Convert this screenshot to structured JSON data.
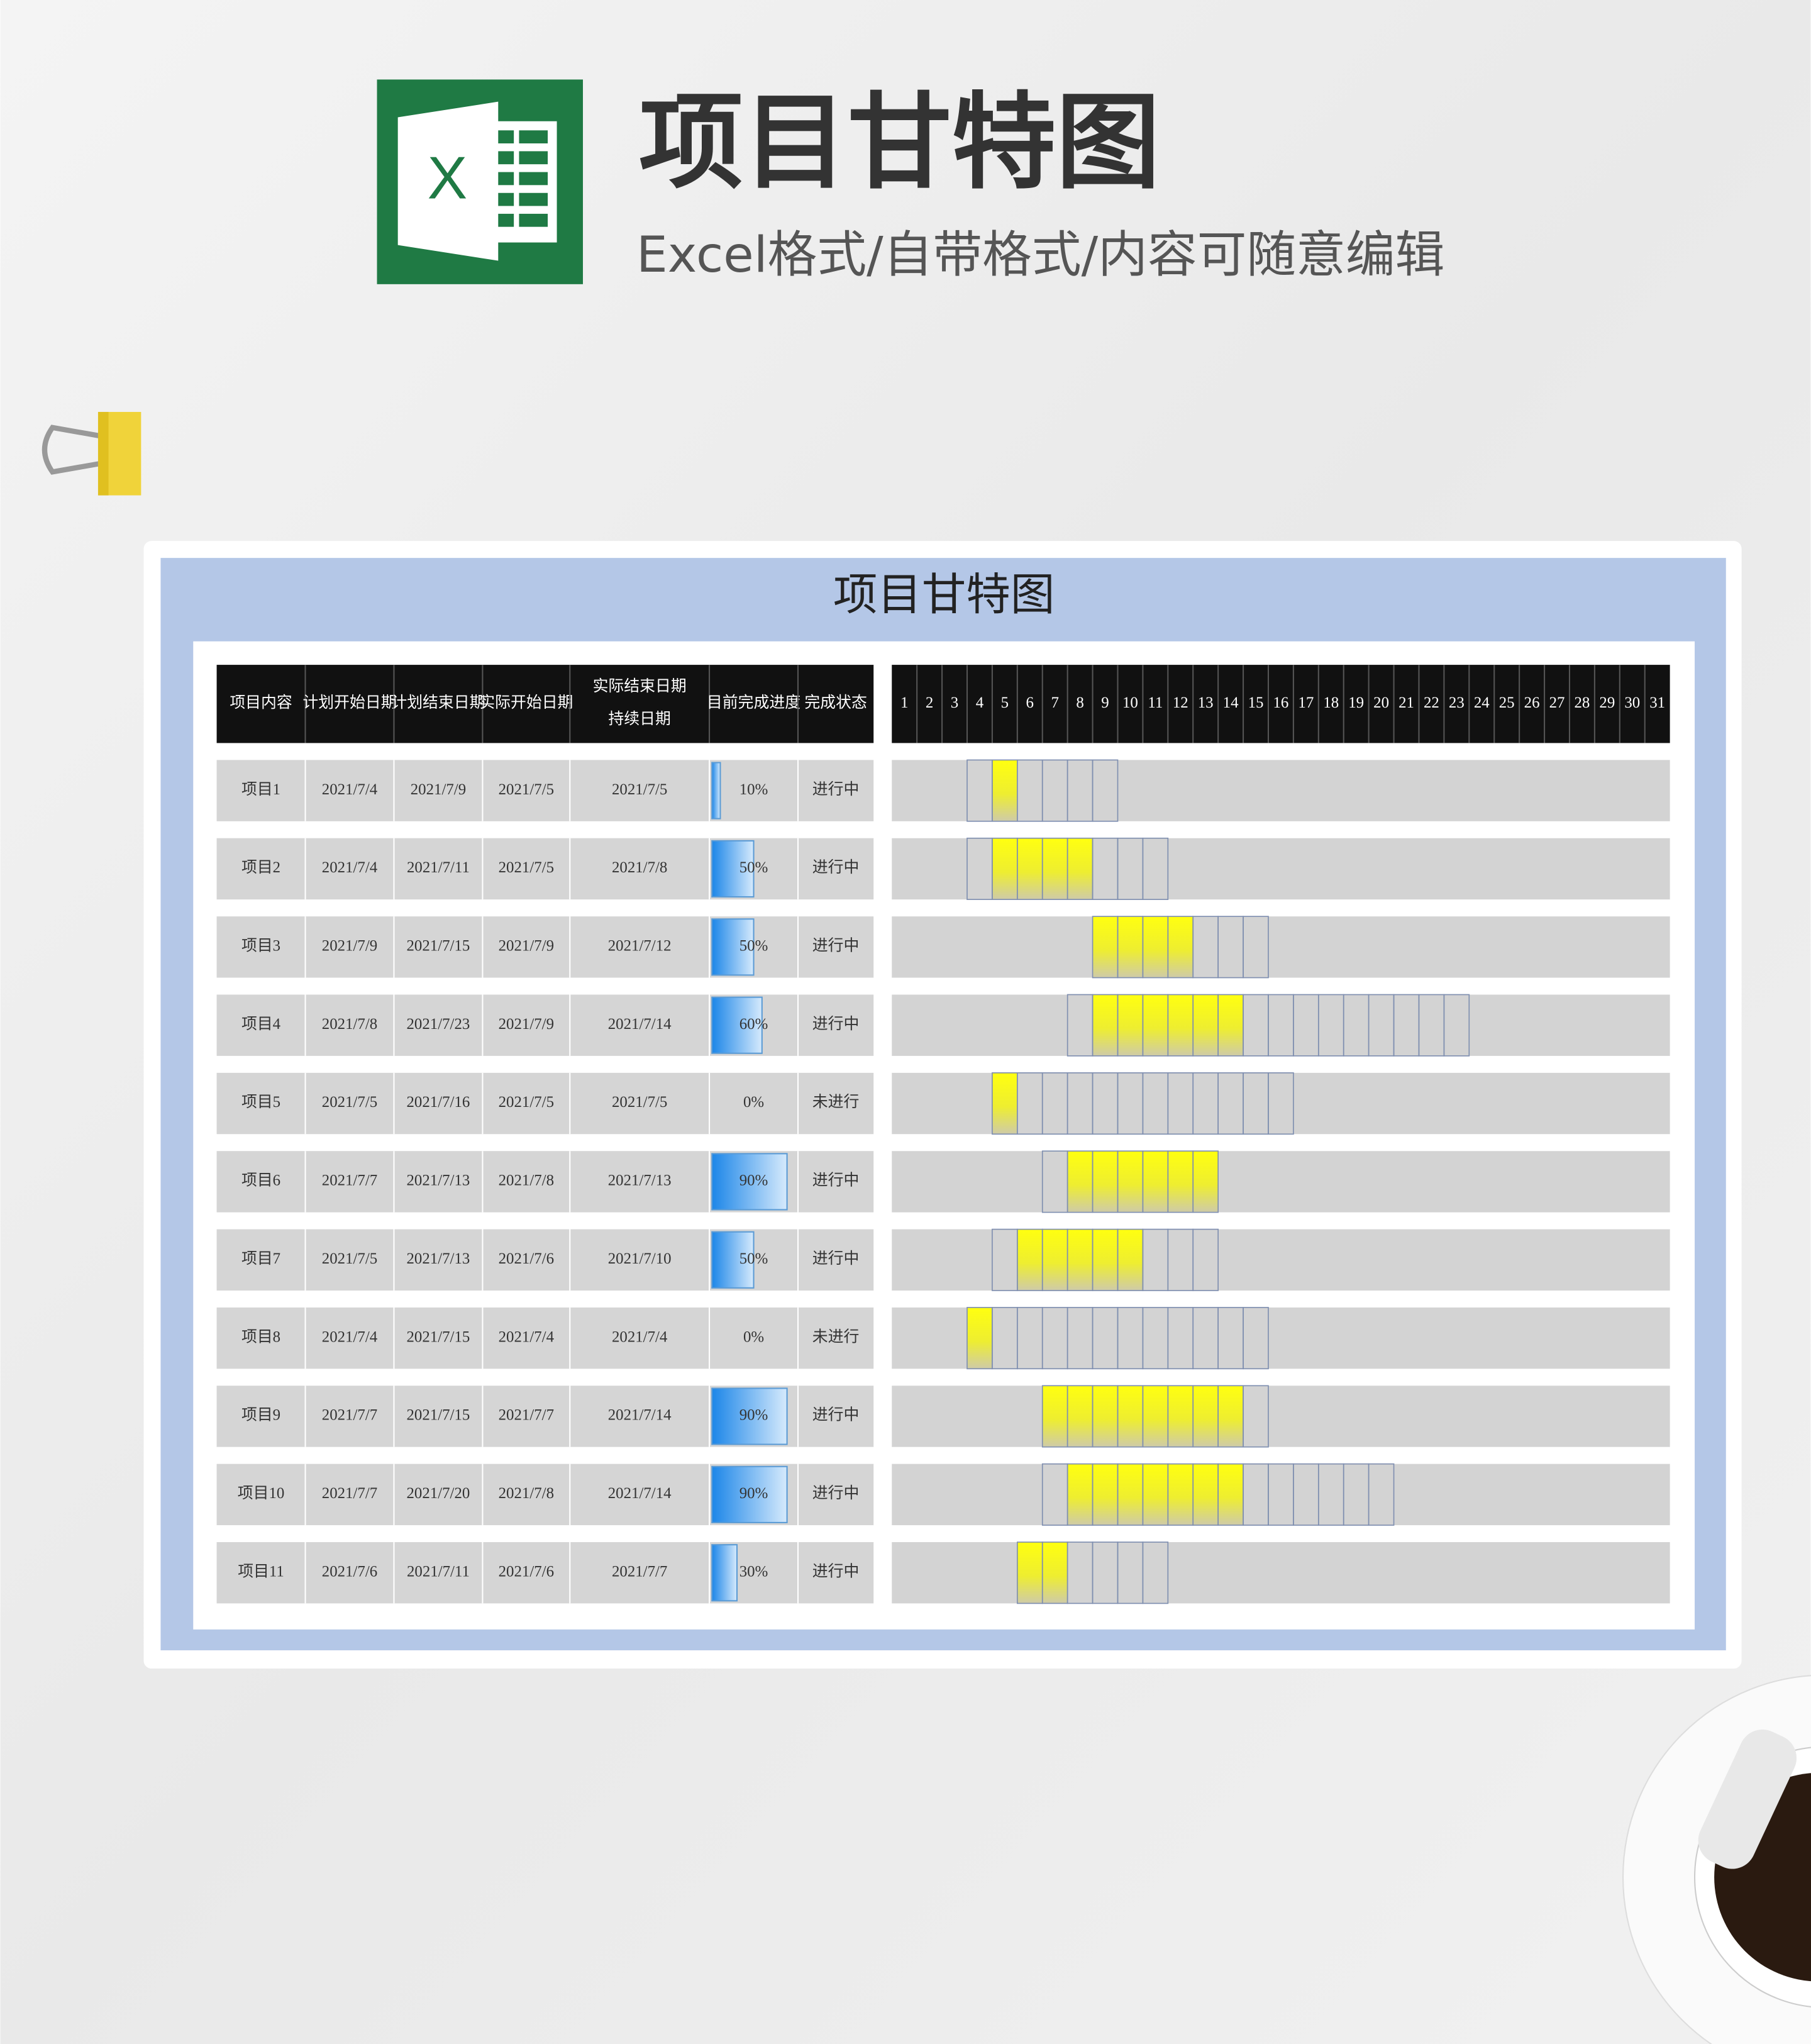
{
  "header": {
    "title": "项目甘特图",
    "subtitle": "Excel格式/自带格式/内容可随意编辑"
  },
  "sheet": {
    "title": "项目甘特图",
    "columns": [
      [
        "项目内容"
      ],
      [
        "计划开始日期"
      ],
      [
        "计划结束日期"
      ],
      [
        "实际开始日期"
      ],
      [
        "实际结束日期",
        "持续日期"
      ],
      [
        "目前完成进度"
      ],
      [
        "完成状态"
      ]
    ],
    "days": [
      1,
      2,
      3,
      4,
      5,
      6,
      7,
      8,
      9,
      10,
      11,
      12,
      13,
      14,
      15,
      16,
      17,
      18,
      19,
      20,
      21,
      22,
      23,
      24,
      25,
      26,
      27,
      28,
      29,
      30,
      31
    ],
    "rows": [
      {
        "name": "项目1",
        "plan_start": "2021/7/4",
        "plan_end": "2021/7/9",
        "actual_start": "2021/7/5",
        "actual_end": "2021/7/5",
        "progress": "10%",
        "status": "进行中"
      },
      {
        "name": "项目2",
        "plan_start": "2021/7/4",
        "plan_end": "2021/7/11",
        "actual_start": "2021/7/5",
        "actual_end": "2021/7/8",
        "progress": "50%",
        "status": "进行中"
      },
      {
        "name": "项目3",
        "plan_start": "2021/7/9",
        "plan_end": "2021/7/15",
        "actual_start": "2021/7/9",
        "actual_end": "2021/7/12",
        "progress": "50%",
        "status": "进行中"
      },
      {
        "name": "项目4",
        "plan_start": "2021/7/8",
        "plan_end": "2021/7/23",
        "actual_start": "2021/7/9",
        "actual_end": "2021/7/14",
        "progress": "60%",
        "status": "进行中"
      },
      {
        "name": "项目5",
        "plan_start": "2021/7/5",
        "plan_end": "2021/7/16",
        "actual_start": "2021/7/5",
        "actual_end": "2021/7/5",
        "progress": "0%",
        "status": "未进行"
      },
      {
        "name": "项目6",
        "plan_start": "2021/7/7",
        "plan_end": "2021/7/13",
        "actual_start": "2021/7/8",
        "actual_end": "2021/7/13",
        "progress": "90%",
        "status": "进行中"
      },
      {
        "name": "项目7",
        "plan_start": "2021/7/5",
        "plan_end": "2021/7/13",
        "actual_start": "2021/7/6",
        "actual_end": "2021/7/10",
        "progress": "50%",
        "status": "进行中"
      },
      {
        "name": "项目8",
        "plan_start": "2021/7/4",
        "plan_end": "2021/7/15",
        "actual_start": "2021/7/4",
        "actual_end": "2021/7/4",
        "progress": "0%",
        "status": "未进行"
      },
      {
        "name": "项目9",
        "plan_start": "2021/7/7",
        "plan_end": "2021/7/15",
        "actual_start": "2021/7/7",
        "actual_end": "2021/7/14",
        "progress": "90%",
        "status": "进行中"
      },
      {
        "name": "项目10",
        "plan_start": "2021/7/7",
        "plan_end": "2021/7/20",
        "actual_start": "2021/7/8",
        "actual_end": "2021/7/14",
        "progress": "90%",
        "status": "进行中"
      },
      {
        "name": "项目11",
        "plan_start": "2021/7/6",
        "plan_end": "2021/7/11",
        "actual_start": "2021/7/6",
        "actual_end": "2021/7/7",
        "progress": "30%",
        "status": "进行中"
      }
    ]
  }
}
